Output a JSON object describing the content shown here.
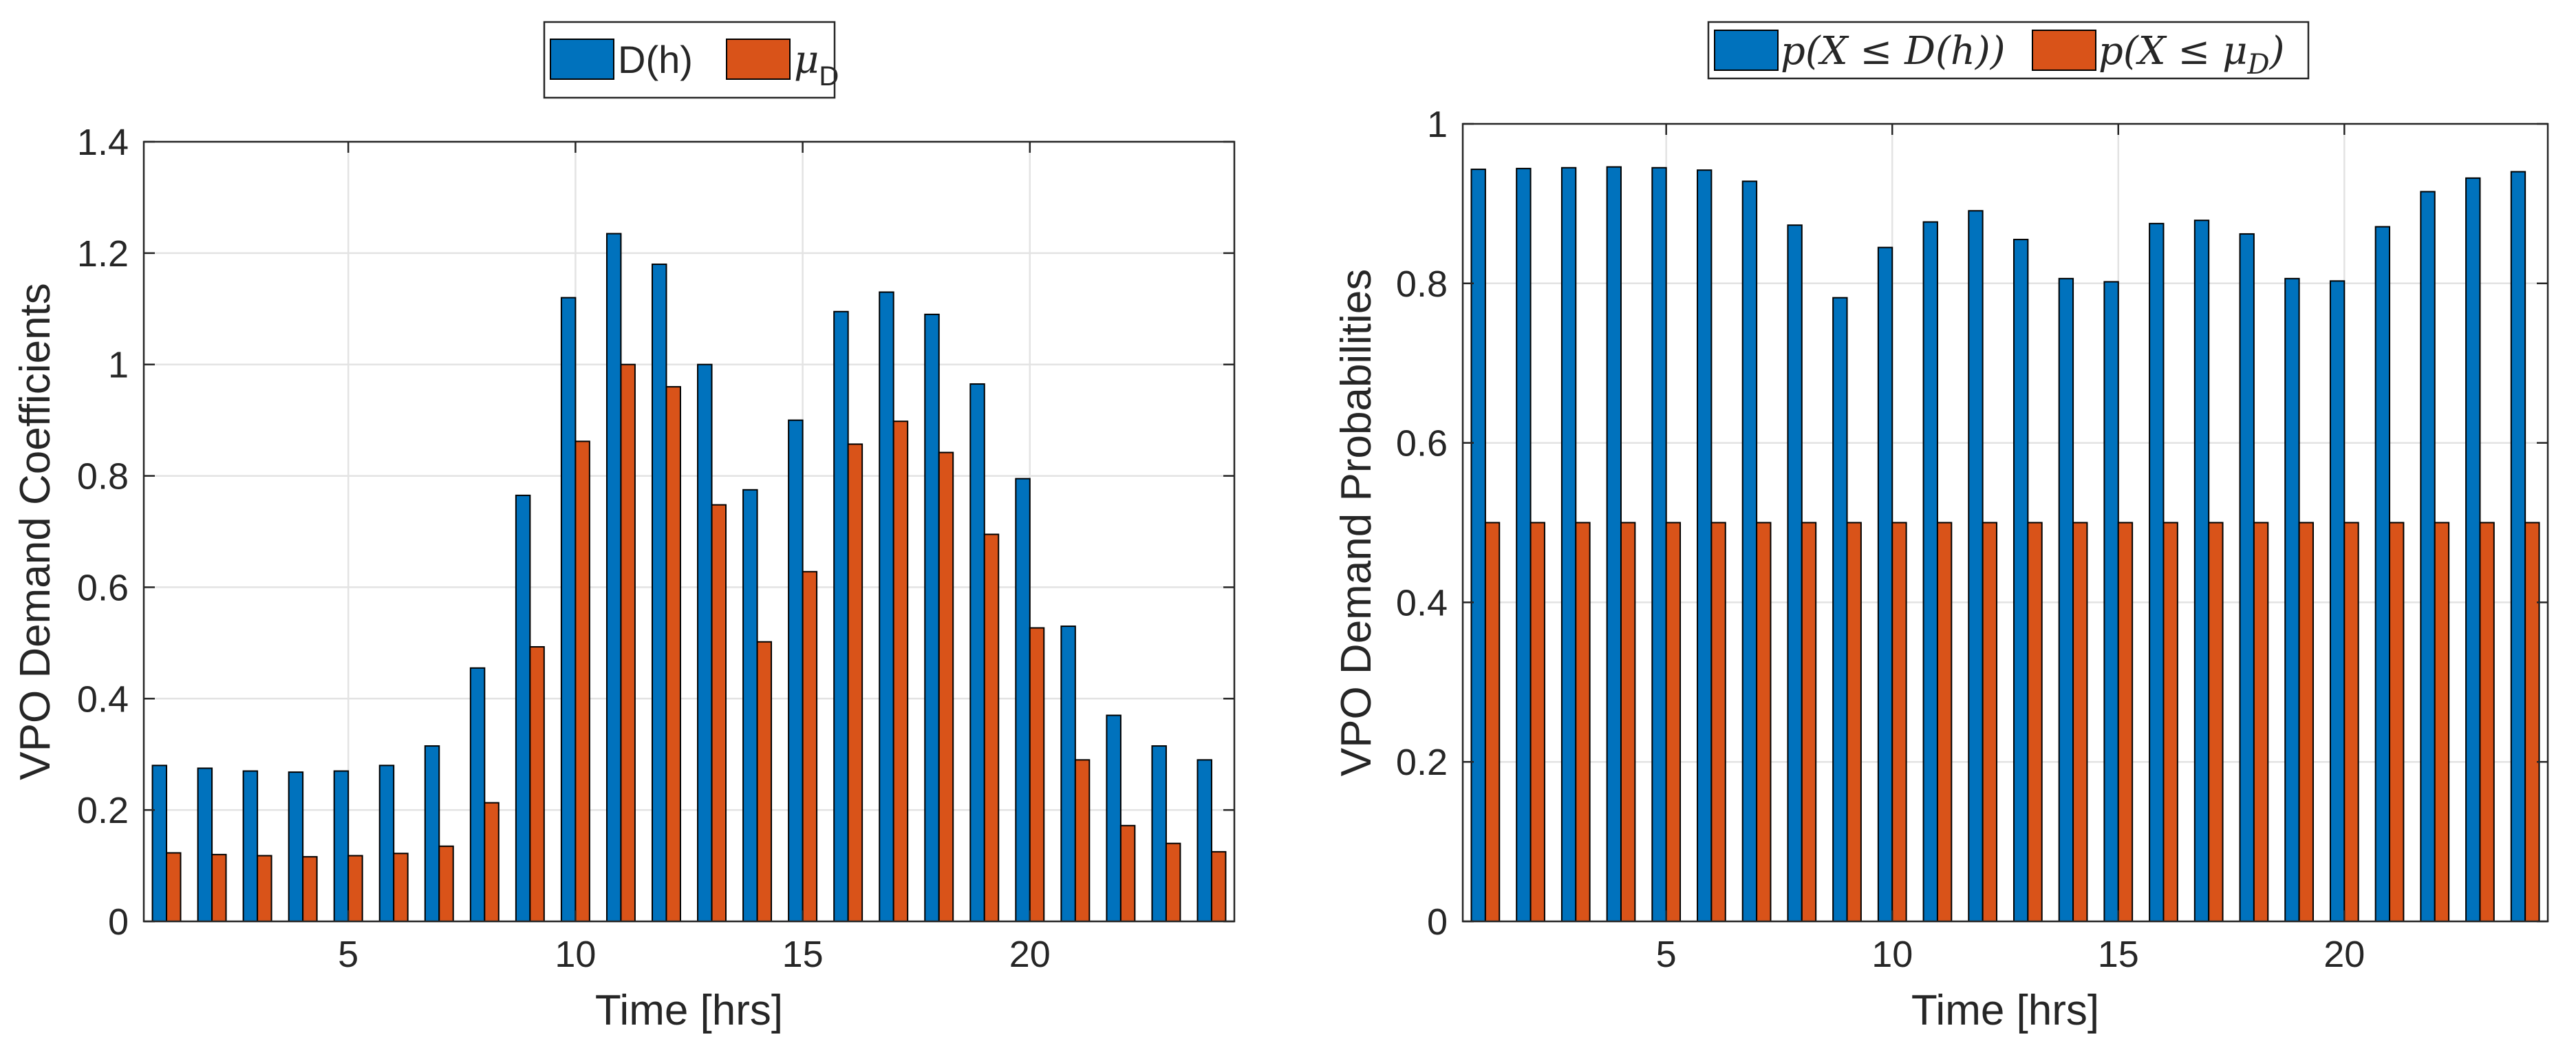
{
  "colors": {
    "series1": "#0072BD",
    "series2": "#D95319"
  },
  "chart_data": [
    {
      "type": "bar",
      "id": "left",
      "xlabel": "Time [hrs]",
      "ylabel": "VPO Demand Coefficients",
      "ylim": [
        0,
        1.4
      ],
      "xlim": [
        0.5,
        24.5
      ],
      "xticks": [
        5,
        10,
        15,
        20
      ],
      "xtick_labels": [
        "5",
        "10",
        "15",
        "20"
      ],
      "yticks": [
        0,
        0.2,
        0.4,
        0.6,
        0.8,
        1,
        1.2,
        1.4
      ],
      "ytick_labels": [
        "0",
        "0.2",
        "0.4",
        "0.6",
        "0.8",
        "1",
        "1.2",
        "1.4"
      ],
      "grid": true,
      "legend_position": "top-center",
      "legend": [
        {
          "label": "D(h)"
        },
        {
          "label_main": "μ",
          "label_sub": "D"
        }
      ],
      "categories": [
        1,
        2,
        3,
        4,
        5,
        6,
        7,
        8,
        9,
        10,
        11,
        12,
        13,
        14,
        15,
        16,
        17,
        18,
        19,
        20,
        21,
        22,
        23,
        24
      ],
      "series": [
        {
          "name": "D(h)",
          "values": [
            0.28,
            0.275,
            0.27,
            0.268,
            0.27,
            0.28,
            0.315,
            0.455,
            0.765,
            1.12,
            1.235,
            1.18,
            1.0,
            0.775,
            0.9,
            1.095,
            1.13,
            1.09,
            0.965,
            0.795,
            0.53,
            0.37,
            0.315,
            0.29
          ]
        },
        {
          "name": "μ_D",
          "values": [
            0.123,
            0.12,
            0.118,
            0.116,
            0.118,
            0.122,
            0.135,
            0.213,
            0.493,
            0.862,
            1.0,
            0.96,
            0.748,
            0.502,
            0.628,
            0.857,
            0.898,
            0.842,
            0.695,
            0.527,
            0.29,
            0.172,
            0.14,
            0.125
          ]
        }
      ]
    },
    {
      "type": "bar",
      "id": "right",
      "xlabel": "Time [hrs]",
      "ylabel": "VPO Demand Probabilities",
      "ylim": [
        0,
        1
      ],
      "xlim": [
        0.5,
        24.5
      ],
      "xticks": [
        5,
        10,
        15,
        20
      ],
      "xtick_labels": [
        "5",
        "10",
        "15",
        "20"
      ],
      "yticks": [
        0,
        0.2,
        0.4,
        0.6,
        0.8,
        1
      ],
      "ytick_labels": [
        "0",
        "0.2",
        "0.4",
        "0.6",
        "0.8",
        "1"
      ],
      "grid": true,
      "legend_position": "top-center",
      "legend": [
        {
          "label": "p(X ≤ D(h))"
        },
        {
          "label": "p(X ≤ μ",
          "label_sub": "D",
          "label_end": ")"
        }
      ],
      "categories": [
        1,
        2,
        3,
        4,
        5,
        6,
        7,
        8,
        9,
        10,
        11,
        12,
        13,
        14,
        15,
        16,
        17,
        18,
        19,
        20,
        21,
        22,
        23,
        24
      ],
      "series": [
        {
          "name": "p(X ≤ D(h))",
          "values": [
            0.943,
            0.944,
            0.945,
            0.946,
            0.945,
            0.942,
            0.928,
            0.873,
            0.782,
            0.845,
            0.877,
            0.891,
            0.855,
            0.806,
            0.802,
            0.875,
            0.879,
            0.862,
            0.806,
            0.803,
            0.871,
            0.915,
            0.932,
            0.94
          ]
        },
        {
          "name": "p(X ≤ μ_D)",
          "values": [
            0.5,
            0.5,
            0.5,
            0.5,
            0.5,
            0.5,
            0.5,
            0.5,
            0.5,
            0.5,
            0.5,
            0.5,
            0.5,
            0.5,
            0.5,
            0.5,
            0.5,
            0.5,
            0.5,
            0.5,
            0.5,
            0.5,
            0.5,
            0.5
          ]
        }
      ]
    }
  ]
}
